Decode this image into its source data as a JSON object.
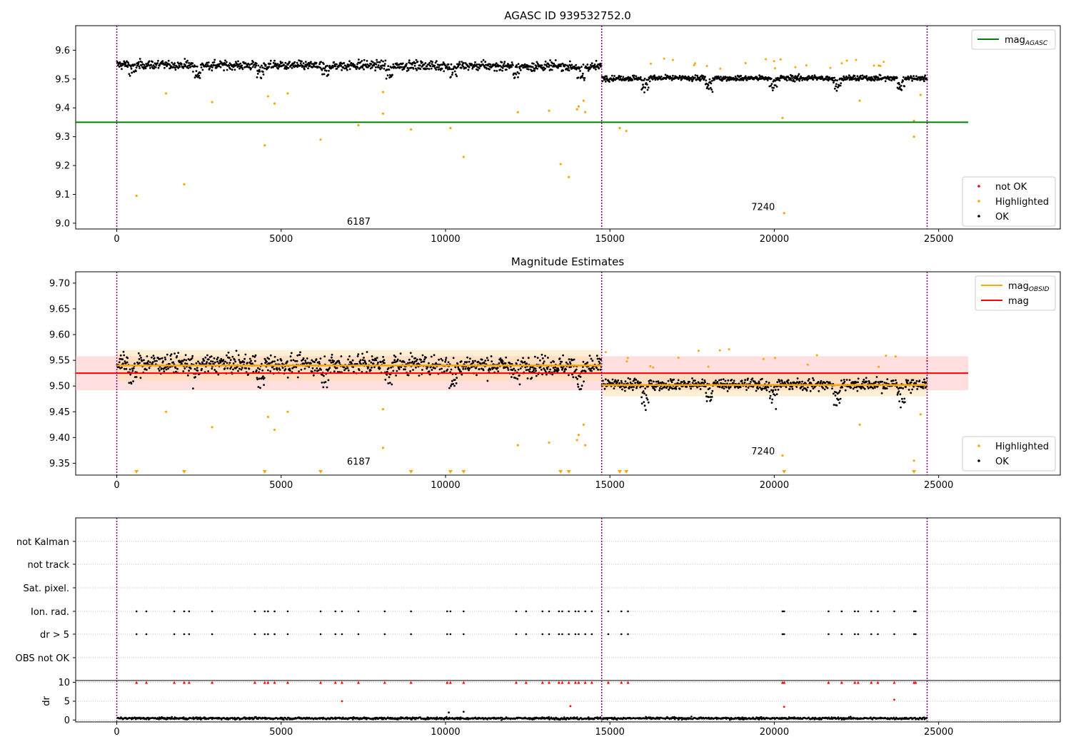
{
  "colors": {
    "ok": "#000000",
    "highlighted": "#ffa500",
    "not_ok": "#ff0000",
    "mag_agasc": "#008000",
    "mag_obsid": "#ffa500",
    "mag": "#ff0000",
    "obsid_boundary": "#800080",
    "mag_band": "#ffc0c0",
    "grid": "#b0b0b0"
  },
  "chart_data": [
    {
      "type": "scatter",
      "title": "AGASC ID 939532752.0",
      "xlabel": "",
      "ylabel": "",
      "xlim": [
        -1250,
        28700
      ],
      "ylim": [
        8.98,
        9.685
      ],
      "xticks": [
        0,
        5000,
        10000,
        15000,
        20000,
        25000
      ],
      "yticks": [
        9.0,
        9.1,
        9.2,
        9.3,
        9.4,
        9.5,
        9.6
      ],
      "ytick_labels": [
        "9.0",
        "9.1",
        "9.2",
        "9.3",
        "9.4",
        "9.5",
        "9.6"
      ],
      "obsid_boundaries": [
        0,
        14750,
        24650
      ],
      "annotations": [
        {
          "text": "6187",
          "x": 7000,
          "y": 9.0
        },
        {
          "text": "7240",
          "x": 19300,
          "y": 9.05
        }
      ],
      "mag_agasc": 9.35,
      "mag_agasc_xrange": [
        -1250,
        25900
      ],
      "segments": [
        {
          "x0": 0,
          "x1": 14750,
          "mean": 9.545,
          "scatter": 0.022,
          "highlighted": false
        },
        {
          "x0": 14750,
          "x1": 24650,
          "mean": 9.503,
          "scatter": 0.013,
          "highlighted": true
        }
      ],
      "outliers": [
        {
          "x": 600,
          "y": 9.095
        },
        {
          "x": 2050,
          "y": 9.135
        },
        {
          "x": 1500,
          "y": 9.45
        },
        {
          "x": 2900,
          "y": 9.42
        },
        {
          "x": 4500,
          "y": 9.27
        },
        {
          "x": 4600,
          "y": 9.44
        },
        {
          "x": 4800,
          "y": 9.415
        },
        {
          "x": 5200,
          "y": 9.45
        },
        {
          "x": 6200,
          "y": 9.29
        },
        {
          "x": 7350,
          "y": 9.34
        },
        {
          "x": 8100,
          "y": 9.38
        },
        {
          "x": 8100,
          "y": 9.455
        },
        {
          "x": 8950,
          "y": 9.325
        },
        {
          "x": 10150,
          "y": 9.33
        },
        {
          "x": 10550,
          "y": 9.23
        },
        {
          "x": 12200,
          "y": 9.385
        },
        {
          "x": 13150,
          "y": 9.39
        },
        {
          "x": 13500,
          "y": 9.205
        },
        {
          "x": 13750,
          "y": 9.16
        },
        {
          "x": 14000,
          "y": 9.395
        },
        {
          "x": 14050,
          "y": 9.405
        },
        {
          "x": 14200,
          "y": 9.425
        },
        {
          "x": 14250,
          "y": 9.385
        },
        {
          "x": 15300,
          "y": 9.33
        },
        {
          "x": 15500,
          "y": 9.32
        },
        {
          "x": 20300,
          "y": 9.035
        },
        {
          "x": 20250,
          "y": 9.365
        },
        {
          "x": 22600,
          "y": 9.425
        },
        {
          "x": 24250,
          "y": 9.355
        },
        {
          "x": 24250,
          "y": 9.3
        },
        {
          "x": 24450,
          "y": 9.445
        }
      ],
      "legends": [
        {
          "position": "upper right",
          "entries": [
            {
              "label": "mag",
              "subscript": "AGASC",
              "kind": "line",
              "color": "#008000"
            }
          ]
        },
        {
          "position": "lower right",
          "entries": [
            {
              "label": "not OK",
              "kind": "dot",
              "color": "#ff0000"
            },
            {
              "label": "Highlighted",
              "kind": "dot",
              "color": "#ffa500"
            },
            {
              "label": "OK",
              "kind": "dot",
              "color": "#000000"
            }
          ]
        }
      ]
    },
    {
      "type": "scatter",
      "title": "Magnitude Estimates",
      "xlabel": "",
      "ylabel": "",
      "xlim": [
        -1250,
        28700
      ],
      "ylim": [
        9.327,
        9.722
      ],
      "xticks": [
        0,
        5000,
        10000,
        15000,
        20000,
        25000
      ],
      "yticks": [
        9.35,
        9.4,
        9.45,
        9.5,
        9.55,
        9.6,
        9.65,
        9.7
      ],
      "ytick_labels": [
        "9.35",
        "9.40",
        "9.45",
        "9.50",
        "9.55",
        "9.60",
        "9.65",
        "9.70"
      ],
      "obsid_boundaries": [
        0,
        14750,
        24650
      ],
      "annotations": [
        {
          "text": "6187",
          "x": 7000,
          "y": 9.35
        },
        {
          "text": "7240",
          "x": 19300,
          "y": 9.37
        }
      ],
      "mag": 9.525,
      "mag_band": [
        9.492,
        9.558
      ],
      "mag_xrange": [
        -1250,
        25900
      ],
      "mag_obsid": [
        {
          "x0": 0,
          "x1": 14750,
          "value": 9.54
        },
        {
          "x0": 14750,
          "x1": 24650,
          "value": 9.502
        }
      ],
      "mag_obsid_bands": [
        {
          "x0": 0,
          "x1": 14750,
          "y0": 9.51,
          "y1": 9.57
        },
        {
          "x0": 14750,
          "x1": 24650,
          "y0": 9.48,
          "y1": 9.525
        }
      ],
      "segments": [
        {
          "x0": 0,
          "x1": 14750,
          "mean": 9.54,
          "scatter": 0.027,
          "highlighted": false
        },
        {
          "x0": 14750,
          "x1": 24650,
          "mean": 9.503,
          "scatter": 0.016,
          "highlighted": true
        }
      ],
      "outliers": [
        {
          "x": 1500,
          "y": 9.45
        },
        {
          "x": 2900,
          "y": 9.42
        },
        {
          "x": 4600,
          "y": 9.44
        },
        {
          "x": 4800,
          "y": 9.415
        },
        {
          "x": 5200,
          "y": 9.45
        },
        {
          "x": 8100,
          "y": 9.38
        },
        {
          "x": 8100,
          "y": 9.455
        },
        {
          "x": 12200,
          "y": 9.385
        },
        {
          "x": 13150,
          "y": 9.39
        },
        {
          "x": 14000,
          "y": 9.395
        },
        {
          "x": 14050,
          "y": 9.405
        },
        {
          "x": 14200,
          "y": 9.425
        },
        {
          "x": 14250,
          "y": 9.385
        },
        {
          "x": 20250,
          "y": 9.365
        },
        {
          "x": 22600,
          "y": 9.425
        },
        {
          "x": 24250,
          "y": 9.355
        },
        {
          "x": 24450,
          "y": 9.445
        }
      ],
      "clipped_below": [
        600,
        2050,
        4500,
        6200,
        8950,
        10150,
        10550,
        13500,
        13750,
        15300,
        15500,
        20300,
        24250
      ],
      "legends": [
        {
          "position": "upper right",
          "entries": [
            {
              "label": "mag",
              "subscript": "OBSID",
              "kind": "line",
              "color": "#ffa500"
            },
            {
              "label": "mag",
              "kind": "line",
              "color": "#ff0000"
            }
          ]
        },
        {
          "position": "lower right",
          "entries": [
            {
              "label": "Highlighted",
              "kind": "dot",
              "color": "#ffa500"
            },
            {
              "label": "OK",
              "kind": "dot",
              "color": "#000000"
            }
          ]
        }
      ]
    },
    {
      "type": "scatter",
      "title": "",
      "xlabel": "",
      "ylabel": "",
      "xlim": [
        -1250,
        28700
      ],
      "categories": [
        "not Kalman",
        "not track",
        "Sat. pixel.",
        "Ion. rad.",
        "dr > 5",
        "OBS not OK"
      ],
      "obsid_boundaries": [
        0,
        14750,
        24650
      ],
      "flag_times": [
        600,
        900,
        1750,
        2050,
        2200,
        2900,
        4200,
        4500,
        4600,
        4800,
        5200,
        6200,
        6650,
        6850,
        7350,
        8150,
        8950,
        10050,
        10150,
        10550,
        12150,
        12450,
        12950,
        13150,
        13450,
        13550,
        13750,
        13950,
        14050,
        14250,
        14450,
        14950,
        15350,
        15550,
        20250,
        20300,
        21650,
        22050,
        22450,
        22550,
        22950,
        23150,
        23650,
        24250,
        24300
      ],
      "flag_rows": [
        "Ion. rad.",
        "dr > 5"
      ]
    },
    {
      "type": "scatter",
      "title": "",
      "xlabel": "",
      "ylabel": "dr",
      "xlim": [
        -1250,
        28700
      ],
      "ylim": [
        -0.5,
        10.5
      ],
      "xticks": [
        0,
        5000,
        10000,
        15000,
        20000,
        25000
      ],
      "yticks": [
        0,
        5,
        10
      ],
      "ytick_labels": [
        "0",
        "5",
        "10"
      ],
      "obsid_boundaries": [
        0,
        14750,
        24650
      ],
      "capped_at": 10,
      "capped_times": [
        600,
        900,
        1750,
        2050,
        2200,
        2900,
        4200,
        4500,
        4600,
        4800,
        5200,
        6200,
        6650,
        6850,
        7350,
        8150,
        8950,
        10050,
        10150,
        10550,
        12150,
        12450,
        12950,
        13150,
        13450,
        13550,
        13750,
        13950,
        14050,
        14250,
        14450,
        14950,
        15350,
        15550,
        20250,
        20300,
        21650,
        22050,
        22450,
        22550,
        22950,
        23150,
        23650,
        24250,
        24300
      ],
      "mid_points": [
        {
          "x": 6850,
          "y": 5.0
        },
        {
          "x": 13800,
          "y": 3.7
        },
        {
          "x": 20300,
          "y": 3.5
        },
        {
          "x": 23650,
          "y": 5.4
        },
        {
          "x": 10100,
          "y": 2.0
        },
        {
          "x": 10550,
          "y": 2.2
        }
      ],
      "baseline_mean": 0.45,
      "baseline_max": 1.1
    }
  ]
}
